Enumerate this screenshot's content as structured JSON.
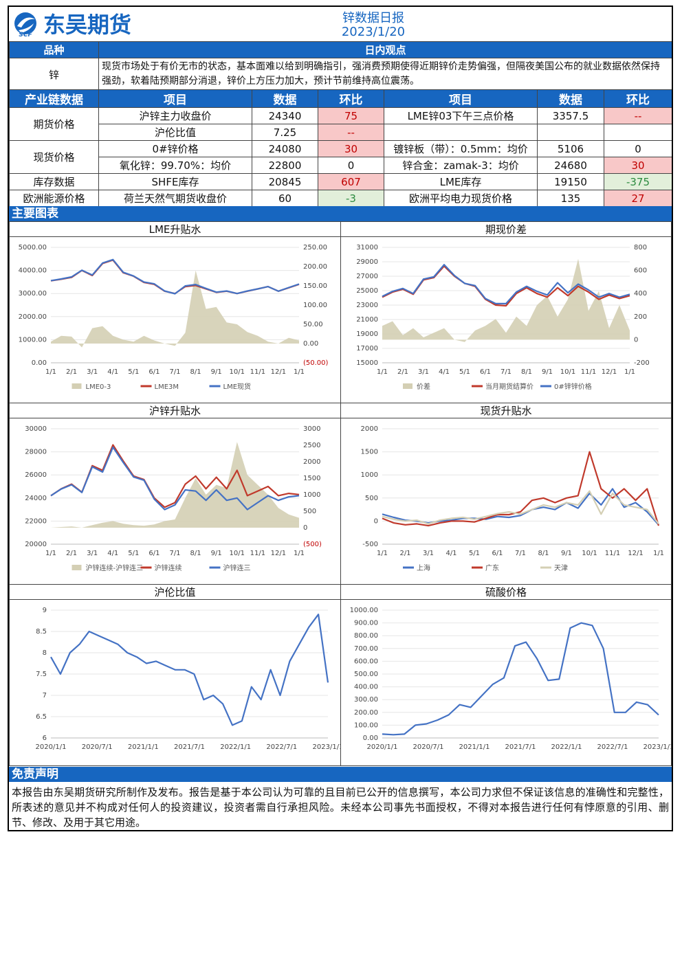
{
  "header": {
    "brand_abbr": "SCF",
    "brand_name": "东吴期货",
    "report_title": "锌数据日报",
    "report_date": "2023/1/20"
  },
  "view": {
    "col_variety": "品种",
    "col_view": "日内观点",
    "variety": "锌",
    "text": "现货市场处于有价无市的状态，基本面难以给到明确指引，强消费预期使得近期锌价走势偏强，但隔夜美国公布的就业数据依然保持强劲，软着陆预期部分消退，锌价上方压力加大，预计节前维持高位震荡。"
  },
  "chain": {
    "headers": [
      "产业链数据",
      "项目",
      "数据",
      "环比",
      "项目",
      "数据",
      "环比"
    ],
    "rows": [
      {
        "category": "期货价格",
        "item1": "沪锌主力收盘价",
        "val1": "24340",
        "chg1": "75",
        "chg1_tone": "red",
        "item2": "LME锌03下午三点价格",
        "val2": "3357.5",
        "chg2": "--",
        "chg2_tone": "red"
      },
      {
        "category": "",
        "item1": "沪伦比值",
        "val1": "7.25",
        "chg1": "--",
        "chg1_tone": "red",
        "item2": "",
        "val2": "",
        "chg2": "",
        "chg2_tone": ""
      },
      {
        "category": "现货价格",
        "item1": "0#锌价格",
        "val1": "24080",
        "chg1": "30",
        "chg1_tone": "red",
        "item2": "镀锌板（带）：0.5mm：均价",
        "val2": "5106",
        "chg2": "0",
        "chg2_tone": ""
      },
      {
        "category": "",
        "item1": "氧化锌：99.70%：均价",
        "val1": "22800",
        "chg1": "0",
        "chg1_tone": "",
        "item2": "锌合金：zamak-3：均价",
        "val2": "24680",
        "chg2": "30",
        "chg2_tone": "red"
      },
      {
        "category": "库存数据",
        "item1": "SHFE库存",
        "val1": "20845",
        "chg1": "607",
        "chg1_tone": "red",
        "item2": "LME库存",
        "val2": "19150",
        "chg2": "-375",
        "chg2_tone": "grn"
      },
      {
        "category": "欧洲能源价格",
        "item1": "荷兰天然气期货收盘价",
        "val1": "60",
        "chg1": "-3",
        "chg1_tone": "grn",
        "item2": "欧洲平均电力现货价格",
        "val2": "135",
        "chg2": "27",
        "chg2_tone": "red"
      }
    ]
  },
  "charts_section": {
    "title": "主要图表"
  },
  "chart_data": [
    {
      "id": "lme",
      "title": "LME升贴水",
      "type": "line",
      "x_ticks": [
        "1/1",
        "2/1",
        "3/1",
        "4/1",
        "5/1",
        "6/1",
        "7/1",
        "8/1",
        "9/1",
        "10/1",
        "11/1",
        "12/1",
        "1/1"
      ],
      "y_left_ticks": [
        "0.00",
        "1000.00",
        "2000.00",
        "3000.00",
        "4000.00",
        "5000.00"
      ],
      "y_right_ticks": [
        "(50.00)",
        "0.00",
        "50.00",
        "100.00",
        "150.00",
        "200.00",
        "250.00"
      ],
      "ylim_left": [
        0,
        5000
      ],
      "ylim_right": [
        -50,
        250
      ],
      "legend": [
        "LME0-3",
        "LME3M",
        "LME现货"
      ],
      "colors": [
        "#d4cfb4",
        "#c0392b",
        "#4472c4"
      ],
      "series": [
        {
          "name": "LME0-3",
          "kind": "area",
          "axis": "right",
          "values": [
            5,
            20,
            18,
            -10,
            40,
            45,
            20,
            10,
            5,
            20,
            8,
            0,
            -6,
            28,
            190,
            90,
            95,
            55,
            50,
            30,
            20,
            5,
            0,
            15,
            8
          ]
        },
        {
          "name": "LME3M",
          "kind": "line",
          "axis": "left",
          "values": [
            3550,
            3620,
            3700,
            4000,
            3780,
            4300,
            4450,
            3900,
            3750,
            3480,
            3400,
            3100,
            3000,
            3300,
            3350,
            3200,
            3050,
            3100,
            3000,
            3100,
            3200,
            3300,
            3100,
            3250,
            3400
          ]
        },
        {
          "name": "LME现货",
          "kind": "line",
          "axis": "left",
          "values": [
            3560,
            3630,
            3720,
            4010,
            3800,
            4320,
            4470,
            3920,
            3760,
            3500,
            3420,
            3110,
            2990,
            3330,
            3390,
            3220,
            3060,
            3110,
            3000,
            3110,
            3200,
            3300,
            3100,
            3260,
            3410
          ]
        }
      ]
    },
    {
      "id": "basis",
      "title": "期现价差",
      "type": "line",
      "x_ticks": [
        "1/1",
        "2/1",
        "3/1",
        "4/1",
        "5/1",
        "6/1",
        "7/1",
        "8/1",
        "9/1",
        "10/1",
        "11/1",
        "12/1",
        "1/1"
      ],
      "y_left_ticks": [
        "15000",
        "17000",
        "19000",
        "21000",
        "23000",
        "25000",
        "27000",
        "29000",
        "31000"
      ],
      "y_right_ticks": [
        "-200",
        "0",
        "200",
        "400",
        "600",
        "800"
      ],
      "ylim_left": [
        15000,
        31000
      ],
      "ylim_right": [
        -200,
        800
      ],
      "legend": [
        "价差",
        "当月期货结算价",
        "0#锌锌价格"
      ],
      "colors": [
        "#d4cfb4",
        "#c0392b",
        "#4472c4"
      ],
      "series": [
        {
          "name": "价差",
          "kind": "area",
          "axis": "right",
          "values": [
            120,
            160,
            40,
            100,
            20,
            60,
            100,
            0,
            -20,
            80,
            120,
            180,
            60,
            200,
            120,
            300,
            380,
            200,
            350,
            700,
            250,
            420,
            100,
            300,
            80
          ]
        },
        {
          "name": "当月期货结算价",
          "kind": "line",
          "axis": "left",
          "values": [
            24100,
            24800,
            25200,
            24500,
            26500,
            26800,
            28400,
            27000,
            26000,
            25600,
            23800,
            23000,
            22900,
            24600,
            25400,
            24600,
            24100,
            25400,
            24300,
            25600,
            24800,
            23800,
            24400,
            23900,
            24300
          ]
        },
        {
          "name": "0#锌锌价格",
          "kind": "line",
          "axis": "left",
          "values": [
            24200,
            24900,
            25300,
            24600,
            26600,
            26900,
            28600,
            27100,
            26000,
            25700,
            23900,
            23200,
            23200,
            24800,
            25600,
            24900,
            24400,
            26100,
            24700,
            25900,
            25100,
            24100,
            24600,
            24100,
            24500
          ]
        }
      ]
    },
    {
      "id": "shfe",
      "title": "沪锌升贴水",
      "type": "line",
      "x_ticks": [
        "1/1",
        "2/1",
        "3/1",
        "4/1",
        "5/1",
        "6/1",
        "7/1",
        "8/1",
        "9/1",
        "10/1",
        "11/1",
        "12/1",
        "1/1"
      ],
      "y_left_ticks": [
        "20000",
        "22000",
        "24000",
        "26000",
        "28000",
        "30000"
      ],
      "y_right_ticks": [
        "(500)",
        "0",
        "500",
        "1000",
        "1500",
        "2000",
        "2500",
        "3000"
      ],
      "ylim_left": [
        20000,
        30000
      ],
      "ylim_right": [
        -500,
        3000
      ],
      "legend": [
        "沪锌连续-沪锌连三",
        "沪锌连续",
        "沪锌连三"
      ],
      "colors": [
        "#d4cfb4",
        "#c0392b",
        "#4472c4"
      ],
      "series": [
        {
          "name": "沪锌连续-沪锌连三",
          "kind": "area",
          "axis": "right",
          "values": [
            0,
            20,
            40,
            0,
            80,
            150,
            200,
            120,
            80,
            60,
            100,
            200,
            250,
            900,
            1500,
            1000,
            1300,
            1200,
            2600,
            1600,
            1300,
            1000,
            600,
            400,
            300
          ]
        },
        {
          "name": "沪锌连续",
          "kind": "line",
          "axis": "left",
          "values": [
            24200,
            24800,
            25200,
            24500,
            26800,
            26400,
            28600,
            27200,
            25900,
            25600,
            24000,
            23200,
            23600,
            25200,
            25900,
            24800,
            25800,
            24800,
            26400,
            24200,
            24600,
            25000,
            24200,
            24400,
            24300
          ]
        },
        {
          "name": "沪锌连三",
          "kind": "line",
          "axis": "left",
          "values": [
            24200,
            24780,
            25150,
            24480,
            26700,
            26250,
            28400,
            27080,
            25820,
            25540,
            23900,
            23000,
            23400,
            24700,
            24600,
            23800,
            24700,
            23800,
            24000,
            23000,
            23600,
            24200,
            23800,
            24100,
            24200
          ]
        }
      ]
    },
    {
      "id": "spot",
      "title": "现货升贴水",
      "type": "line",
      "x_ticks": [
        "1/1",
        "2/1",
        "3/1",
        "4/1",
        "5/1",
        "6/1",
        "7/1",
        "8/1",
        "9/1",
        "10/1",
        "11/1",
        "12/1",
        "1/1"
      ],
      "y_ticks": [
        "-500",
        "0",
        "500",
        "1000",
        "1500",
        "2000"
      ],
      "ylim": [
        -500,
        2000
      ],
      "legend": [
        "上海",
        "广东",
        "天津"
      ],
      "colors": [
        "#4472c4",
        "#c0392b",
        "#d4cfb4"
      ],
      "series": [
        {
          "name": "上海",
          "values": [
            150,
            80,
            20,
            0,
            -40,
            0,
            20,
            60,
            60,
            40,
            100,
            80,
            120,
            250,
            300,
            250,
            400,
            280,
            600,
            350,
            700,
            300,
            400,
            200,
            -80
          ]
        },
        {
          "name": "广东",
          "values": [
            60,
            -40,
            -80,
            -60,
            -100,
            -40,
            0,
            0,
            -20,
            60,
            140,
            140,
            200,
            450,
            500,
            400,
            500,
            550,
            1500,
            700,
            500,
            700,
            450,
            700,
            -100
          ]
        },
        {
          "name": "天津",
          "values": [
            100,
            40,
            0,
            20,
            -60,
            20,
            60,
            80,
            40,
            100,
            160,
            200,
            150,
            250,
            350,
            300,
            400,
            350,
            650,
            150,
            600,
            350,
            300,
            250,
            -60
          ]
        }
      ]
    },
    {
      "id": "ratio",
      "title": "沪伦比值",
      "type": "line",
      "x_ticks": [
        "2020/1/1",
        "2020/7/1",
        "2021/1/1",
        "2021/7/1",
        "2022/1/1",
        "2022/7/1",
        "2023/1/1"
      ],
      "y_ticks": [
        "6",
        "6.5",
        "7",
        "7.5",
        "8",
        "8.5",
        "9"
      ],
      "ylim": [
        6,
        9
      ],
      "colors": [
        "#4472c4"
      ],
      "series": [
        {
          "name": "沪伦比值",
          "values": [
            7.9,
            7.5,
            8.0,
            8.2,
            8.5,
            8.4,
            8.3,
            8.2,
            8.0,
            7.9,
            7.75,
            7.8,
            7.7,
            7.6,
            7.6,
            7.5,
            6.9,
            7.0,
            6.8,
            6.3,
            6.4,
            7.2,
            6.9,
            7.6,
            7.0,
            7.8,
            8.2,
            8.6,
            8.9,
            7.3
          ]
        }
      ]
    },
    {
      "id": "acid",
      "title": "硫酸价格",
      "type": "line",
      "x_ticks": [
        "2020/1/1",
        "2020/7/1",
        "2021/1/1",
        "2021/7/1",
        "2022/1/1",
        "2022/7/1",
        "2023/1/1"
      ],
      "y_ticks": [
        "0.00",
        "100.00",
        "200.00",
        "300.00",
        "400.00",
        "500.00",
        "600.00",
        "700.00",
        "800.00",
        "900.00",
        "1000.00"
      ],
      "ylim": [
        0,
        1000
      ],
      "colors": [
        "#4472c4"
      ],
      "series": [
        {
          "name": "硫酸价格",
          "values": [
            30,
            25,
            30,
            100,
            110,
            140,
            180,
            260,
            240,
            330,
            420,
            470,
            720,
            750,
            620,
            450,
            460,
            860,
            900,
            880,
            700,
            200,
            200,
            280,
            260,
            180
          ]
        }
      ]
    }
  ],
  "disclaimer": {
    "title": "免责声明",
    "text": "本报告由东吴期货研究所制作及发布。报告是基于本公司认为可靠的且目前已公开的信息撰写，本公司力求但不保证该信息的准确性和完整性，所表述的意见并不构成对任何人的投资建议，投资者需自行承担风险。未经本公司事先书面授权，不得对本报告进行任何有悖原意的引用、删节、修改、及用于其它用途。"
  }
}
